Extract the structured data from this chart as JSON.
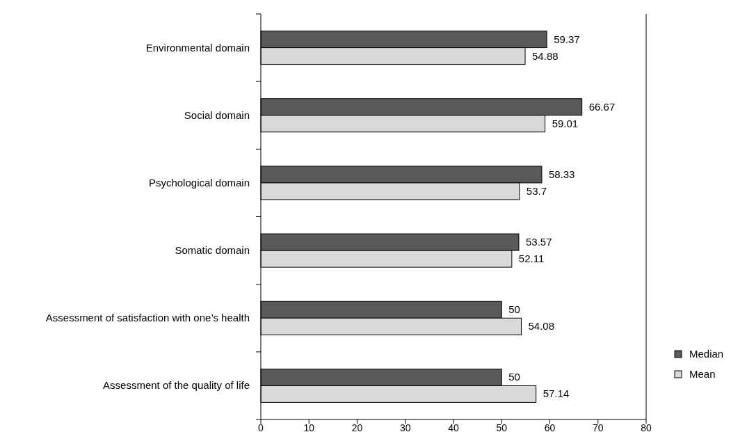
{
  "chart_data": {
    "type": "bar",
    "orientation": "horizontal",
    "categories": [
      "Environmental domain",
      "Social domain",
      "Psychological domain",
      "Somatic domain",
      "Assessment of satisfaction with one’s health",
      "Assessment of the quality of life"
    ],
    "series": [
      {
        "name": "Median",
        "color": "#595959",
        "values": [
          59.37,
          66.67,
          58.33,
          53.57,
          50,
          50
        ]
      },
      {
        "name": "Mean",
        "color": "#d9d9d9",
        "values": [
          54.88,
          59.01,
          53.7,
          52.11,
          54.08,
          57.14
        ]
      }
    ],
    "xlim": [
      0,
      80
    ],
    "xticks": [
      0,
      10,
      20,
      30,
      40,
      50,
      60,
      70,
      80
    ],
    "data_labels": true,
    "legend": "bottom right",
    "grid": false
  }
}
